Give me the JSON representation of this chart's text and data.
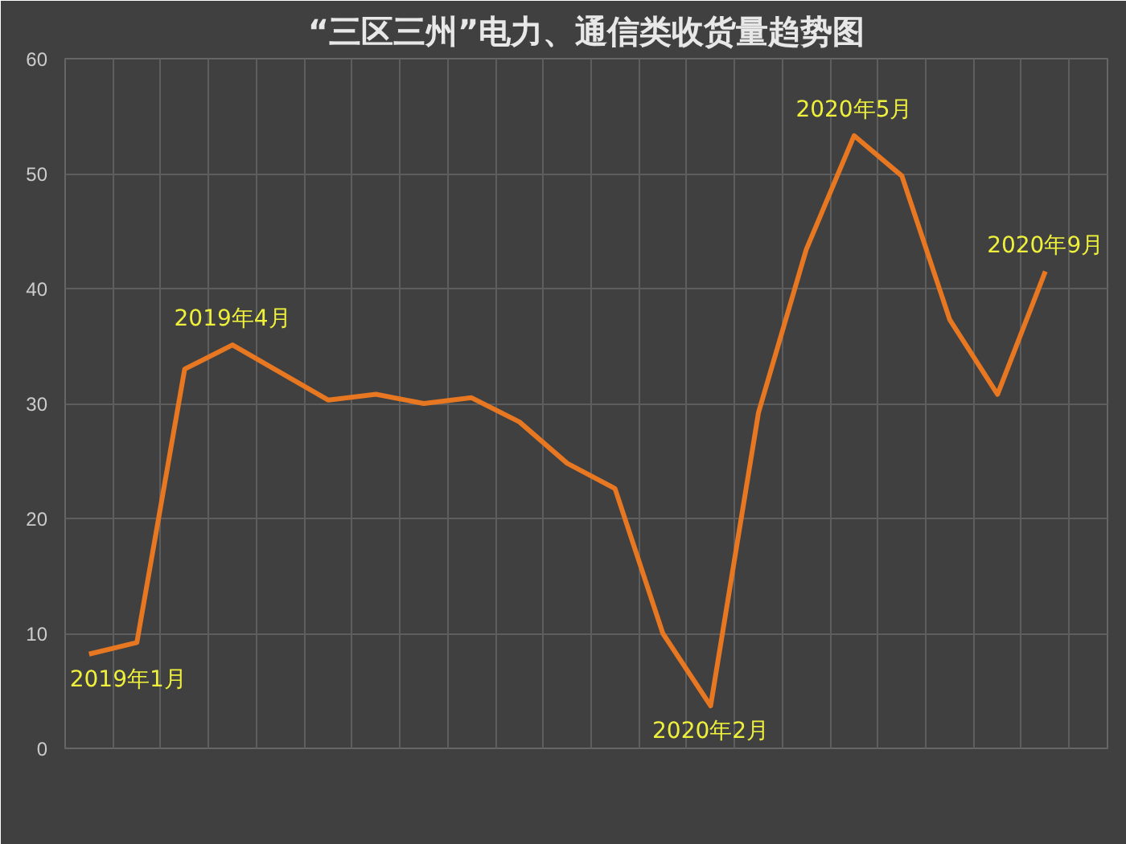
{
  "chart_data": {
    "type": "line",
    "title": "“三区三州”电力、通信类收货量趋势图",
    "categories": [
      null,
      null,
      null,
      null,
      null,
      null,
      null,
      null,
      null,
      null,
      null,
      null,
      null,
      null,
      null,
      null,
      null,
      null,
      null,
      null,
      null
    ],
    "series": [
      {
        "color": "#e87722",
        "values": [
          8.2,
          9.2,
          33,
          35.1,
          32.7,
          30.3,
          30.8,
          30.0,
          30.5,
          28.4,
          24.8,
          22.6,
          10.0,
          3.7,
          29.2,
          43.4,
          53.3,
          49.8,
          37.3,
          30.8,
          41.5
        ]
      }
    ],
    "ylim": [
      0,
      60
    ],
    "yticks": [
      0,
      10,
      20,
      30,
      40,
      50,
      60
    ],
    "tick_labels": "y",
    "grid": true,
    "annotations": [
      {
        "text": "2019年1月",
        "y": 8.2
      },
      {
        "text": "2019年4月",
        "y": 35.1
      },
      {
        "text": "2020年2月",
        "y": 3.7
      },
      {
        "text": "2020年5月",
        "y": 53.3
      },
      {
        "text": "2020年9月",
        "y": 41.5
      }
    ]
  }
}
